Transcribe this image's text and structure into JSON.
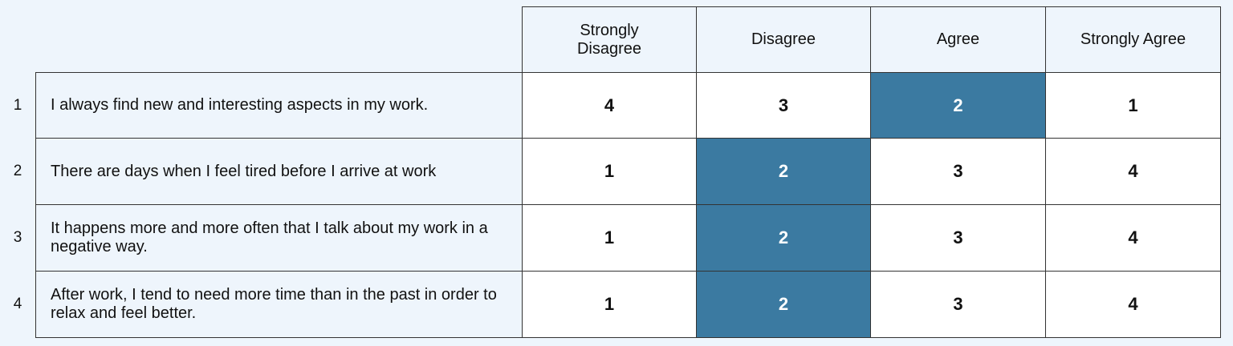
{
  "table": {
    "columns": [
      "Strongly Disagree",
      "Disagree",
      "Agree",
      "Strongly Agree"
    ],
    "highlight_color": "#3b7aa1",
    "rows": [
      {
        "number": 1,
        "statement": "I always find new and interesting aspects in my work.",
        "values": [
          4,
          3,
          2,
          1
        ],
        "selected": 2
      },
      {
        "number": 2,
        "statement": "There are days when I feel tired before I arrive at work",
        "values": [
          1,
          2,
          3,
          4
        ],
        "selected": 1
      },
      {
        "number": 3,
        "statement": "It happens more and more often that I talk about my work in a negative way.",
        "values": [
          1,
          2,
          3,
          4
        ],
        "selected": 1
      },
      {
        "number": 4,
        "statement": "After work, I tend to need more time than in the past in order to relax and feel better.",
        "values": [
          1,
          2,
          3,
          4
        ],
        "selected": 1
      }
    ]
  }
}
